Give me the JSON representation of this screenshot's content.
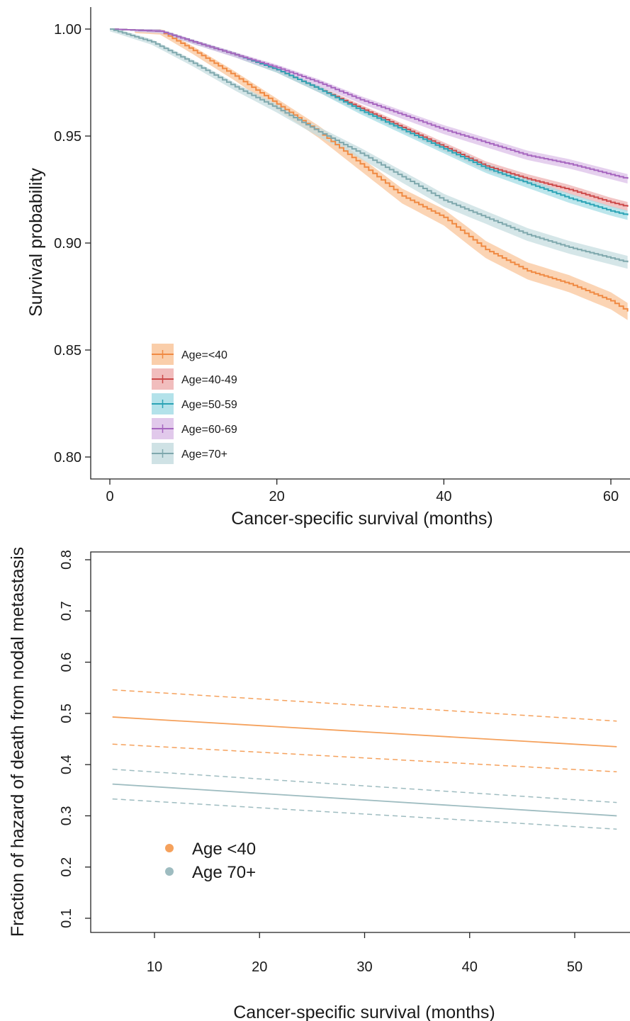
{
  "chart_data": [
    {
      "type": "line",
      "subtype": "kaplan-meier step curves with confidence bands",
      "xlabel": "Cancer-specific survival (months)",
      "ylabel": "Survival probability",
      "xlim": [
        0,
        62
      ],
      "ylim": [
        0.8,
        1.0
      ],
      "x_ticks": [
        0,
        20,
        40,
        60
      ],
      "y_ticks": [
        0.8,
        0.85,
        0.9,
        0.95,
        1.0
      ],
      "grid": false,
      "legend_position": "bottom-left",
      "series": [
        {
          "name": "Age=<40",
          "color": "#f08a43",
          "band_color": "#f9c59b",
          "x": [
            0,
            6,
            10,
            15,
            20,
            25,
            30,
            35,
            40,
            45,
            50,
            55,
            60,
            62
          ],
          "y": [
            1.0,
            0.999,
            0.99,
            0.978,
            0.965,
            0.952,
            0.937,
            0.922,
            0.912,
            0.897,
            0.887,
            0.881,
            0.873,
            0.868
          ],
          "band_halfwidth": 0.004
        },
        {
          "name": "Age=40-49",
          "color": "#cc4a4a",
          "band_color": "#eeb1b1",
          "x": [
            0,
            6,
            10,
            15,
            20,
            25,
            30,
            35,
            40,
            45,
            50,
            55,
            60,
            62
          ],
          "y": [
            1.0,
            0.999,
            0.994,
            0.988,
            0.981,
            0.972,
            0.963,
            0.954,
            0.945,
            0.936,
            0.93,
            0.925,
            0.919,
            0.917
          ],
          "band_halfwidth": 0.0022
        },
        {
          "name": "Age=50-59",
          "color": "#2ba3b5",
          "band_color": "#a6dde6",
          "x": [
            0,
            6,
            10,
            15,
            20,
            25,
            30,
            35,
            40,
            45,
            50,
            55,
            60,
            62
          ],
          "y": [
            1.0,
            0.999,
            0.994,
            0.988,
            0.981,
            0.972,
            0.962,
            0.953,
            0.944,
            0.935,
            0.928,
            0.921,
            0.915,
            0.913
          ],
          "band_halfwidth": 0.0022
        },
        {
          "name": "Age=60-69",
          "color": "#a666bf",
          "band_color": "#dcc0e8",
          "x": [
            0,
            6,
            10,
            15,
            20,
            25,
            30,
            35,
            40,
            45,
            50,
            55,
            60,
            62
          ],
          "y": [
            1.0,
            0.999,
            0.994,
            0.988,
            0.982,
            0.975,
            0.967,
            0.96,
            0.953,
            0.947,
            0.941,
            0.937,
            0.932,
            0.93
          ],
          "band_halfwidth": 0.0022
        },
        {
          "name": "Age=70+",
          "color": "#7fa8ad",
          "band_color": "#c7dde0",
          "x": [
            0,
            5,
            10,
            15,
            20,
            25,
            30,
            35,
            40,
            45,
            50,
            55,
            60,
            62
          ],
          "y": [
            1.0,
            0.994,
            0.984,
            0.973,
            0.963,
            0.952,
            0.942,
            0.931,
            0.92,
            0.912,
            0.904,
            0.898,
            0.893,
            0.891
          ],
          "band_halfwidth": 0.003
        }
      ]
    },
    {
      "type": "line",
      "xlabel": "Cancer-specific survival (months)",
      "ylabel": "Fraction of hazard of death from nodal metastasis",
      "xlim": [
        4,
        55
      ],
      "ylim": [
        0.05,
        0.85
      ],
      "x_ticks": [
        10,
        20,
        30,
        40,
        50
      ],
      "y_ticks": [
        0.1,
        0.2,
        0.3,
        0.4,
        0.5,
        0.6,
        0.7,
        0.8
      ],
      "grid": false,
      "legend_position": "bottom-left",
      "series": [
        {
          "name": "Age <40",
          "color": "#f5a15c",
          "x": [
            6,
            54
          ],
          "y": [
            0.493,
            0.435
          ],
          "lower": [
            0.44,
            0.386
          ],
          "upper": [
            0.546,
            0.485
          ]
        },
        {
          "name": "Age 70+",
          "color": "#9ebcc0",
          "x": [
            6,
            54
          ],
          "y": [
            0.362,
            0.3
          ],
          "lower": [
            0.333,
            0.274
          ],
          "upper": [
            0.391,
            0.326
          ]
        }
      ]
    }
  ]
}
